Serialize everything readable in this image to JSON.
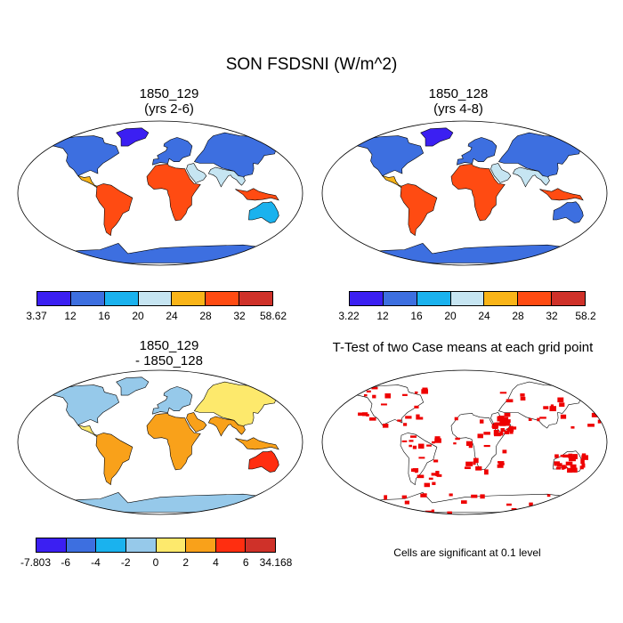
{
  "title": "SON FSDSNI (W/m^2)",
  "panels": [
    {
      "title": "1850_129",
      "subtitle": "(yrs 2-6)"
    },
    {
      "title": "1850_128",
      "subtitle": "(yrs 4-8)"
    },
    {
      "title": "1850_129",
      "subtitle": "- 1850_128"
    },
    {
      "title": "T-Test of two Case means at each grid point",
      "subtitle": ""
    }
  ],
  "note": "Cells are significant at 0.1 level",
  "colors": {
    "mean_scale": [
      "#3b1ff2",
      "#3d6fe0",
      "#1ab2ee",
      "#c6e5f2",
      "#f9b418",
      "#ff4b12",
      "#cf3129"
    ],
    "diff_scale": [
      "#3b1ff2",
      "#3d6fe0",
      "#1ab2ee",
      "#96c9ea",
      "#fde96c",
      "#f9a11a",
      "#ff2e10",
      "#cf3129"
    ],
    "significant": "#ee0000",
    "land_outline": "#000000"
  },
  "chart_data": [
    {
      "type": "heatmap",
      "projection": "Robinson",
      "title": "1850_129 (yrs 2-6)",
      "colorbar": {
        "ticks": [
          "3.37",
          "12",
          "16",
          "20",
          "24",
          "28",
          "32",
          "58.62"
        ],
        "range": [
          3.37,
          58.62
        ]
      },
      "regions": [
        {
          "name": "North America",
          "value": 14
        },
        {
          "name": "Greenland",
          "value": 10
        },
        {
          "name": "Central America",
          "value": 27
        },
        {
          "name": "South America",
          "value": 30
        },
        {
          "name": "Europe",
          "value": 12
        },
        {
          "name": "Africa",
          "value": 30
        },
        {
          "name": "Middle East",
          "value": 23
        },
        {
          "name": "Asia",
          "value": 15
        },
        {
          "name": "South Asia",
          "value": 20
        },
        {
          "name": "Maritime Continent",
          "value": 30
        },
        {
          "name": "Australia",
          "value": 18
        },
        {
          "name": "Antarctica",
          "value": 14
        }
      ]
    },
    {
      "type": "heatmap",
      "projection": "Robinson",
      "title": "1850_128 (yrs 4-8)",
      "colorbar": {
        "ticks": [
          "3.22",
          "12",
          "16",
          "20",
          "24",
          "28",
          "32",
          "58.2"
        ],
        "range": [
          3.22,
          58.2
        ]
      },
      "regions": [
        {
          "name": "North America",
          "value": 14
        },
        {
          "name": "Greenland",
          "value": 10
        },
        {
          "name": "Central America",
          "value": 27
        },
        {
          "name": "South America",
          "value": 30
        },
        {
          "name": "Europe",
          "value": 12
        },
        {
          "name": "Africa",
          "value": 30
        },
        {
          "name": "Middle East",
          "value": 22
        },
        {
          "name": "Asia",
          "value": 15
        },
        {
          "name": "South Asia",
          "value": 22
        },
        {
          "name": "Maritime Continent",
          "value": 30
        },
        {
          "name": "Australia",
          "value": 15
        },
        {
          "name": "Antarctica",
          "value": 14
        }
      ]
    },
    {
      "type": "heatmap",
      "projection": "Robinson",
      "title": "1850_129 - 1850_128",
      "colorbar": {
        "ticks": [
          "-7.803",
          "-6",
          "-4",
          "-2",
          "0",
          "2",
          "4",
          "6",
          "34.168"
        ],
        "range": [
          -7.803,
          34.168
        ]
      },
      "regions": [
        {
          "name": "North America",
          "value": -1
        },
        {
          "name": "Greenland",
          "value": -1
        },
        {
          "name": "Central America",
          "value": 1
        },
        {
          "name": "South America",
          "value": 2
        },
        {
          "name": "Europe",
          "value": -1
        },
        {
          "name": "Africa",
          "value": 2
        },
        {
          "name": "Middle East",
          "value": 3
        },
        {
          "name": "Asia",
          "value": 1
        },
        {
          "name": "South Asia",
          "value": 3
        },
        {
          "name": "Maritime Continent",
          "value": 2
        },
        {
          "name": "Australia",
          "value": 4
        },
        {
          "name": "Antarctica",
          "value": -1
        }
      ]
    },
    {
      "type": "heatmap",
      "projection": "Robinson",
      "title": "T-Test of two Case means at each grid point",
      "regions": [
        {
          "name": "North America",
          "significant": true
        },
        {
          "name": "South America",
          "significant": true
        },
        {
          "name": "Africa",
          "significant": true
        },
        {
          "name": "Middle East",
          "significant": true
        },
        {
          "name": "Asia",
          "significant": true
        },
        {
          "name": "Australia",
          "significant": true
        },
        {
          "name": "Antarctica",
          "significant": true
        }
      ]
    }
  ]
}
